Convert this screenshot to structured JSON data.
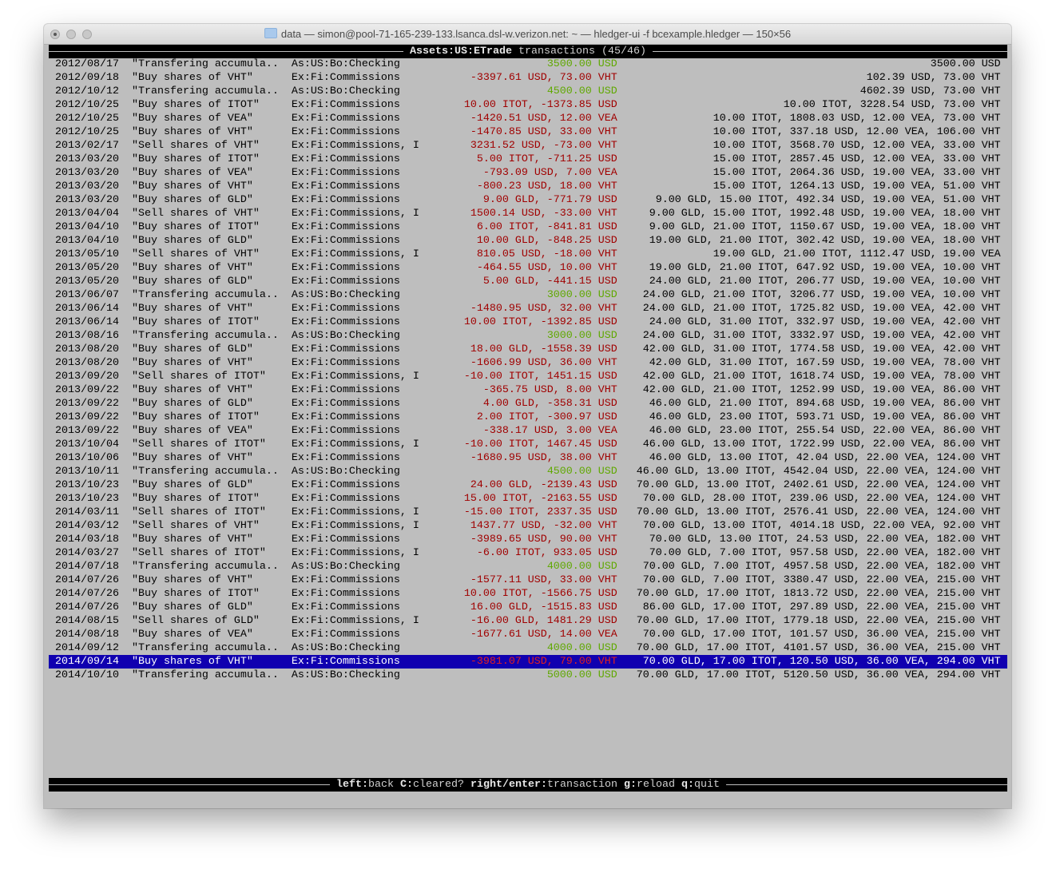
{
  "window": {
    "title": "data — simon@pool-71-165-239-133.lsanca.dsl-w.verizon.net: ~ — hledger-ui -f bcexample.hledger — 150×56"
  },
  "header": {
    "account": "Assets:US:ETrade",
    "suffix": " transactions (45/46)"
  },
  "colors": {
    "negative": "#a00000",
    "positive": "#5fa800",
    "selection": "#1000b0",
    "background": "#bebebe"
  },
  "selected_index": 44,
  "rows": [
    {
      "date": "2012/08/17",
      "desc": "\"Transfering accumula..",
      "account": "As:US:Bo:Checking",
      "change": "3500.00 USD",
      "positive": true,
      "balance": "3500.00 USD"
    },
    {
      "date": "2012/09/18",
      "desc": "\"Buy shares of VHT\"",
      "account": "Ex:Fi:Commissions",
      "change": "-3397.61 USD, 73.00 VHT",
      "positive": false,
      "balance": "102.39 USD, 73.00 VHT"
    },
    {
      "date": "2012/10/12",
      "desc": "\"Transfering accumula..",
      "account": "As:US:Bo:Checking",
      "change": "4500.00 USD",
      "positive": true,
      "balance": "4602.39 USD, 73.00 VHT"
    },
    {
      "date": "2012/10/25",
      "desc": "\"Buy shares of ITOT\"",
      "account": "Ex:Fi:Commissions",
      "change": "10.00 ITOT, -1373.85 USD",
      "positive": false,
      "balance": "10.00 ITOT, 3228.54 USD, 73.00 VHT"
    },
    {
      "date": "2012/10/25",
      "desc": "\"Buy shares of VEA\"",
      "account": "Ex:Fi:Commissions",
      "change": "-1420.51 USD, 12.00 VEA",
      "positive": false,
      "balance": "10.00 ITOT, 1808.03 USD, 12.00 VEA, 73.00 VHT"
    },
    {
      "date": "2012/10/25",
      "desc": "\"Buy shares of VHT\"",
      "account": "Ex:Fi:Commissions",
      "change": "-1470.85 USD, 33.00 VHT",
      "positive": false,
      "balance": "10.00 ITOT, 337.18 USD, 12.00 VEA, 106.00 VHT"
    },
    {
      "date": "2013/02/17",
      "desc": "\"Sell shares of VHT\"",
      "account": "Ex:Fi:Commissions, In:..",
      "change": "3231.52 USD, -73.00 VHT",
      "positive": false,
      "balance": "10.00 ITOT, 3568.70 USD, 12.00 VEA, 33.00 VHT"
    },
    {
      "date": "2013/03/20",
      "desc": "\"Buy shares of ITOT\"",
      "account": "Ex:Fi:Commissions",
      "change": "5.00 ITOT, -711.25 USD",
      "positive": false,
      "balance": "15.00 ITOT, 2857.45 USD, 12.00 VEA, 33.00 VHT"
    },
    {
      "date": "2013/03/20",
      "desc": "\"Buy shares of VEA\"",
      "account": "Ex:Fi:Commissions",
      "change": "-793.09 USD, 7.00 VEA",
      "positive": false,
      "balance": "15.00 ITOT, 2064.36 USD, 19.00 VEA, 33.00 VHT"
    },
    {
      "date": "2013/03/20",
      "desc": "\"Buy shares of VHT\"",
      "account": "Ex:Fi:Commissions",
      "change": "-800.23 USD, 18.00 VHT",
      "positive": false,
      "balance": "15.00 ITOT, 1264.13 USD, 19.00 VEA, 51.00 VHT"
    },
    {
      "date": "2013/03/20",
      "desc": "\"Buy shares of GLD\"",
      "account": "Ex:Fi:Commissions",
      "change": "9.00 GLD, -771.79 USD",
      "positive": false,
      "balance": "9.00 GLD, 15.00 ITOT, 492.34 USD, 19.00 VEA, 51.00 VHT"
    },
    {
      "date": "2013/04/04",
      "desc": "\"Sell shares of VHT\"",
      "account": "Ex:Fi:Commissions, In:..",
      "change": "1500.14 USD, -33.00 VHT",
      "positive": false,
      "balance": "9.00 GLD, 15.00 ITOT, 1992.48 USD, 19.00 VEA, 18.00 VHT"
    },
    {
      "date": "2013/04/10",
      "desc": "\"Buy shares of ITOT\"",
      "account": "Ex:Fi:Commissions",
      "change": "6.00 ITOT, -841.81 USD",
      "positive": false,
      "balance": "9.00 GLD, 21.00 ITOT, 1150.67 USD, 19.00 VEA, 18.00 VHT"
    },
    {
      "date": "2013/04/10",
      "desc": "\"Buy shares of GLD\"",
      "account": "Ex:Fi:Commissions",
      "change": "10.00 GLD, -848.25 USD",
      "positive": false,
      "balance": "19.00 GLD, 21.00 ITOT, 302.42 USD, 19.00 VEA, 18.00 VHT"
    },
    {
      "date": "2013/05/10",
      "desc": "\"Sell shares of VHT\"",
      "account": "Ex:Fi:Commissions, In:..",
      "change": "810.05 USD, -18.00 VHT",
      "positive": false,
      "balance": "19.00 GLD, 21.00 ITOT, 1112.47 USD, 19.00 VEA"
    },
    {
      "date": "2013/05/20",
      "desc": "\"Buy shares of VHT\"",
      "account": "Ex:Fi:Commissions",
      "change": "-464.55 USD, 10.00 VHT",
      "positive": false,
      "balance": "19.00 GLD, 21.00 ITOT, 647.92 USD, 19.00 VEA, 10.00 VHT"
    },
    {
      "date": "2013/05/20",
      "desc": "\"Buy shares of GLD\"",
      "account": "Ex:Fi:Commissions",
      "change": "5.00 GLD, -441.15 USD",
      "positive": false,
      "balance": "24.00 GLD, 21.00 ITOT, 206.77 USD, 19.00 VEA, 10.00 VHT"
    },
    {
      "date": "2013/06/07",
      "desc": "\"Transfering accumula..",
      "account": "As:US:Bo:Checking",
      "change": "3000.00 USD",
      "positive": true,
      "balance": "24.00 GLD, 21.00 ITOT, 3206.77 USD, 19.00 VEA, 10.00 VHT"
    },
    {
      "date": "2013/06/14",
      "desc": "\"Buy shares of VHT\"",
      "account": "Ex:Fi:Commissions",
      "change": "-1480.95 USD, 32.00 VHT",
      "positive": false,
      "balance": "24.00 GLD, 21.00 ITOT, 1725.82 USD, 19.00 VEA, 42.00 VHT"
    },
    {
      "date": "2013/06/14",
      "desc": "\"Buy shares of ITOT\"",
      "account": "Ex:Fi:Commissions",
      "change": "10.00 ITOT, -1392.85 USD",
      "positive": false,
      "balance": "24.00 GLD, 31.00 ITOT, 332.97 USD, 19.00 VEA, 42.00 VHT"
    },
    {
      "date": "2013/08/16",
      "desc": "\"Transfering accumula..",
      "account": "As:US:Bo:Checking",
      "change": "3000.00 USD",
      "positive": true,
      "balance": "24.00 GLD, 31.00 ITOT, 3332.97 USD, 19.00 VEA, 42.00 VHT"
    },
    {
      "date": "2013/08/20",
      "desc": "\"Buy shares of GLD\"",
      "account": "Ex:Fi:Commissions",
      "change": "18.00 GLD, -1558.39 USD",
      "positive": false,
      "balance": "42.00 GLD, 31.00 ITOT, 1774.58 USD, 19.00 VEA, 42.00 VHT"
    },
    {
      "date": "2013/08/20",
      "desc": "\"Buy shares of VHT\"",
      "account": "Ex:Fi:Commissions",
      "change": "-1606.99 USD, 36.00 VHT",
      "positive": false,
      "balance": "42.00 GLD, 31.00 ITOT, 167.59 USD, 19.00 VEA, 78.00 VHT"
    },
    {
      "date": "2013/09/20",
      "desc": "\"Sell shares of ITOT\"",
      "account": "Ex:Fi:Commissions, In:..",
      "change": "-10.00 ITOT, 1451.15 USD",
      "positive": false,
      "balance": "42.00 GLD, 21.00 ITOT, 1618.74 USD, 19.00 VEA, 78.00 VHT"
    },
    {
      "date": "2013/09/22",
      "desc": "\"Buy shares of VHT\"",
      "account": "Ex:Fi:Commissions",
      "change": "-365.75 USD, 8.00 VHT",
      "positive": false,
      "balance": "42.00 GLD, 21.00 ITOT, 1252.99 USD, 19.00 VEA, 86.00 VHT"
    },
    {
      "date": "2013/09/22",
      "desc": "\"Buy shares of GLD\"",
      "account": "Ex:Fi:Commissions",
      "change": "4.00 GLD, -358.31 USD",
      "positive": false,
      "balance": "46.00 GLD, 21.00 ITOT, 894.68 USD, 19.00 VEA, 86.00 VHT"
    },
    {
      "date": "2013/09/22",
      "desc": "\"Buy shares of ITOT\"",
      "account": "Ex:Fi:Commissions",
      "change": "2.00 ITOT, -300.97 USD",
      "positive": false,
      "balance": "46.00 GLD, 23.00 ITOT, 593.71 USD, 19.00 VEA, 86.00 VHT"
    },
    {
      "date": "2013/09/22",
      "desc": "\"Buy shares of VEA\"",
      "account": "Ex:Fi:Commissions",
      "change": "-338.17 USD, 3.00 VEA",
      "positive": false,
      "balance": "46.00 GLD, 23.00 ITOT, 255.54 USD, 22.00 VEA, 86.00 VHT"
    },
    {
      "date": "2013/10/04",
      "desc": "\"Sell shares of ITOT\"",
      "account": "Ex:Fi:Commissions, In:..",
      "change": "-10.00 ITOT, 1467.45 USD",
      "positive": false,
      "balance": "46.00 GLD, 13.00 ITOT, 1722.99 USD, 22.00 VEA, 86.00 VHT"
    },
    {
      "date": "2013/10/06",
      "desc": "\"Buy shares of VHT\"",
      "account": "Ex:Fi:Commissions",
      "change": "-1680.95 USD, 38.00 VHT",
      "positive": false,
      "balance": "46.00 GLD, 13.00 ITOT, 42.04 USD, 22.00 VEA, 124.00 VHT"
    },
    {
      "date": "2013/10/11",
      "desc": "\"Transfering accumula..",
      "account": "As:US:Bo:Checking",
      "change": "4500.00 USD",
      "positive": true,
      "balance": "46.00 GLD, 13.00 ITOT, 4542.04 USD, 22.00 VEA, 124.00 VHT"
    },
    {
      "date": "2013/10/23",
      "desc": "\"Buy shares of GLD\"",
      "account": "Ex:Fi:Commissions",
      "change": "24.00 GLD, -2139.43 USD",
      "positive": false,
      "balance": "70.00 GLD, 13.00 ITOT, 2402.61 USD, 22.00 VEA, 124.00 VHT"
    },
    {
      "date": "2013/10/23",
      "desc": "\"Buy shares of ITOT\"",
      "account": "Ex:Fi:Commissions",
      "change": "15.00 ITOT, -2163.55 USD",
      "positive": false,
      "balance": "70.00 GLD, 28.00 ITOT, 239.06 USD, 22.00 VEA, 124.00 VHT"
    },
    {
      "date": "2014/03/11",
      "desc": "\"Sell shares of ITOT\"",
      "account": "Ex:Fi:Commissions, In:..",
      "change": "-15.00 ITOT, 2337.35 USD",
      "positive": false,
      "balance": "70.00 GLD, 13.00 ITOT, 2576.41 USD, 22.00 VEA, 124.00 VHT"
    },
    {
      "date": "2014/03/12",
      "desc": "\"Sell shares of VHT\"",
      "account": "Ex:Fi:Commissions, In:..",
      "change": "1437.77 USD, -32.00 VHT",
      "positive": false,
      "balance": "70.00 GLD, 13.00 ITOT, 4014.18 USD, 22.00 VEA, 92.00 VHT"
    },
    {
      "date": "2014/03/18",
      "desc": "\"Buy shares of VHT\"",
      "account": "Ex:Fi:Commissions",
      "change": "-3989.65 USD, 90.00 VHT",
      "positive": false,
      "balance": "70.00 GLD, 13.00 ITOT, 24.53 USD, 22.00 VEA, 182.00 VHT"
    },
    {
      "date": "2014/03/27",
      "desc": "\"Sell shares of ITOT\"",
      "account": "Ex:Fi:Commissions, In:..",
      "change": "-6.00 ITOT, 933.05 USD",
      "positive": false,
      "balance": "70.00 GLD, 7.00 ITOT, 957.58 USD, 22.00 VEA, 182.00 VHT"
    },
    {
      "date": "2014/07/18",
      "desc": "\"Transfering accumula..",
      "account": "As:US:Bo:Checking",
      "change": "4000.00 USD",
      "positive": true,
      "balance": "70.00 GLD, 7.00 ITOT, 4957.58 USD, 22.00 VEA, 182.00 VHT"
    },
    {
      "date": "2014/07/26",
      "desc": "\"Buy shares of VHT\"",
      "account": "Ex:Fi:Commissions",
      "change": "-1577.11 USD, 33.00 VHT",
      "positive": false,
      "balance": "70.00 GLD, 7.00 ITOT, 3380.47 USD, 22.00 VEA, 215.00 VHT"
    },
    {
      "date": "2014/07/26",
      "desc": "\"Buy shares of ITOT\"",
      "account": "Ex:Fi:Commissions",
      "change": "10.00 ITOT, -1566.75 USD",
      "positive": false,
      "balance": "70.00 GLD, 17.00 ITOT, 1813.72 USD, 22.00 VEA, 215.00 VHT"
    },
    {
      "date": "2014/07/26",
      "desc": "\"Buy shares of GLD\"",
      "account": "Ex:Fi:Commissions",
      "change": "16.00 GLD, -1515.83 USD",
      "positive": false,
      "balance": "86.00 GLD, 17.00 ITOT, 297.89 USD, 22.00 VEA, 215.00 VHT"
    },
    {
      "date": "2014/08/15",
      "desc": "\"Sell shares of GLD\"",
      "account": "Ex:Fi:Commissions, In:..",
      "change": "-16.00 GLD, 1481.29 USD",
      "positive": false,
      "balance": "70.00 GLD, 17.00 ITOT, 1779.18 USD, 22.00 VEA, 215.00 VHT"
    },
    {
      "date": "2014/08/18",
      "desc": "\"Buy shares of VEA\"",
      "account": "Ex:Fi:Commissions",
      "change": "-1677.61 USD, 14.00 VEA",
      "positive": false,
      "balance": "70.00 GLD, 17.00 ITOT, 101.57 USD, 36.00 VEA, 215.00 VHT"
    },
    {
      "date": "2014/09/12",
      "desc": "\"Transfering accumula..",
      "account": "As:US:Bo:Checking",
      "change": "4000.00 USD",
      "positive": true,
      "balance": "70.00 GLD, 17.00 ITOT, 4101.57 USD, 36.00 VEA, 215.00 VHT"
    },
    {
      "date": "2014/09/14",
      "desc": "\"Buy shares of VHT\"",
      "account": "Ex:Fi:Commissions",
      "change": "-3981.07 USD, 79.00 VHT",
      "positive": false,
      "balance": "70.00 GLD, 17.00 ITOT, 120.50 USD, 36.00 VEA, 294.00 VHT"
    },
    {
      "date": "2014/10/10",
      "desc": "\"Transfering accumula..",
      "account": "As:US:Bo:Checking",
      "change": "5000.00 USD",
      "positive": true,
      "balance": "70.00 GLD, 17.00 ITOT, 5120.50 USD, 36.00 VEA, 294.00 VHT"
    }
  ],
  "footer": {
    "keys": [
      {
        "key": "left",
        "action": "back"
      },
      {
        "key": "C",
        "action": "cleared?"
      },
      {
        "key": "right/enter",
        "action": "transaction"
      },
      {
        "key": "g",
        "action": "reload"
      },
      {
        "key": "q",
        "action": "quit"
      }
    ]
  }
}
